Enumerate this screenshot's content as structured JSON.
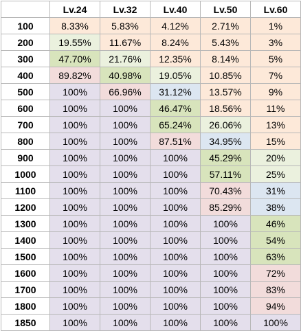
{
  "table": {
    "columns": [
      "",
      "Lv.24",
      "Lv.32",
      "Lv.40",
      "Lv.50",
      "Lv.60"
    ],
    "rows": [
      {
        "label": "100",
        "cells": [
          "8.33%",
          "5.83%",
          "4.12%",
          "2.71%",
          "1%"
        ],
        "tones": [
          "orange",
          "orange",
          "orange",
          "orange",
          "orange"
        ]
      },
      {
        "label": "200",
        "cells": [
          "19.55%",
          "11.67%",
          "8.24%",
          "5.43%",
          "3%"
        ],
        "tones": [
          "green-lt",
          "orange",
          "orange",
          "orange",
          "orange"
        ]
      },
      {
        "label": "300",
        "cells": [
          "47.70%",
          "21.76%",
          "12.35%",
          "8.14%",
          "5%"
        ],
        "tones": [
          "green",
          "green-lt",
          "orange",
          "orange",
          "orange"
        ]
      },
      {
        "label": "400",
        "cells": [
          "89.82%",
          "40.98%",
          "19.05%",
          "10.85%",
          "7%"
        ],
        "tones": [
          "pink",
          "green",
          "green-lt",
          "orange",
          "orange"
        ]
      },
      {
        "label": "500",
        "cells": [
          "100%",
          "66.96%",
          "31.12%",
          "13.57%",
          "9%"
        ],
        "tones": [
          "lilac",
          "pink",
          "blue",
          "orange",
          "orange"
        ]
      },
      {
        "label": "600",
        "cells": [
          "100%",
          "100%",
          "46.47%",
          "18.56%",
          "11%"
        ],
        "tones": [
          "lilac",
          "lilac",
          "green",
          "orange",
          "orange"
        ]
      },
      {
        "label": "700",
        "cells": [
          "100%",
          "100%",
          "65.24%",
          "26.06%",
          "13%"
        ],
        "tones": [
          "lilac",
          "lilac",
          "green",
          "green-lt",
          "orange"
        ]
      },
      {
        "label": "800",
        "cells": [
          "100%",
          "100%",
          "87.51%",
          "34.95%",
          "15%"
        ],
        "tones": [
          "lilac",
          "lilac",
          "pink",
          "blue",
          "orange"
        ]
      },
      {
        "label": "900",
        "cells": [
          "100%",
          "100%",
          "100%",
          "45.29%",
          "20%"
        ],
        "tones": [
          "lilac",
          "lilac",
          "lilac",
          "green",
          "green-lt"
        ]
      },
      {
        "label": "1000",
        "cells": [
          "100%",
          "100%",
          "100%",
          "57.11%",
          "25%"
        ],
        "tones": [
          "lilac",
          "lilac",
          "lilac",
          "green",
          "green-lt"
        ]
      },
      {
        "label": "1100",
        "cells": [
          "100%",
          "100%",
          "100%",
          "70.43%",
          "31%"
        ],
        "tones": [
          "lilac",
          "lilac",
          "lilac",
          "pink",
          "blue"
        ]
      },
      {
        "label": "1200",
        "cells": [
          "100%",
          "100%",
          "100%",
          "85.29%",
          "38%"
        ],
        "tones": [
          "lilac",
          "lilac",
          "lilac",
          "pink",
          "blue"
        ]
      },
      {
        "label": "1300",
        "cells": [
          "100%",
          "100%",
          "100%",
          "100%",
          "46%"
        ],
        "tones": [
          "lilac",
          "lilac",
          "lilac",
          "lilac",
          "green"
        ]
      },
      {
        "label": "1400",
        "cells": [
          "100%",
          "100%",
          "100%",
          "100%",
          "54%"
        ],
        "tones": [
          "lilac",
          "lilac",
          "lilac",
          "lilac",
          "green"
        ]
      },
      {
        "label": "1500",
        "cells": [
          "100%",
          "100%",
          "100%",
          "100%",
          "63%"
        ],
        "tones": [
          "lilac",
          "lilac",
          "lilac",
          "lilac",
          "green"
        ]
      },
      {
        "label": "1600",
        "cells": [
          "100%",
          "100%",
          "100%",
          "100%",
          "72%"
        ],
        "tones": [
          "lilac",
          "lilac",
          "lilac",
          "lilac",
          "pink"
        ]
      },
      {
        "label": "1700",
        "cells": [
          "100%",
          "100%",
          "100%",
          "100%",
          "83%"
        ],
        "tones": [
          "lilac",
          "lilac",
          "lilac",
          "lilac",
          "pink"
        ]
      },
      {
        "label": "1800",
        "cells": [
          "100%",
          "100%",
          "100%",
          "100%",
          "94%"
        ],
        "tones": [
          "lilac",
          "lilac",
          "lilac",
          "lilac",
          "pink"
        ]
      },
      {
        "label": "1850",
        "cells": [
          "100%",
          "100%",
          "100%",
          "100%",
          "100%"
        ],
        "tones": [
          "lilac",
          "lilac",
          "lilac",
          "lilac",
          "lilac"
        ]
      }
    ]
  },
  "colors": {
    "orange": "#fde9d9",
    "green-lt": "#ebf1de",
    "green": "#d8e4bc",
    "pink": "#f2dcdb",
    "blue": "#dce6f1",
    "lilac": "#e4dfec",
    "border": "#b7b7b7"
  }
}
